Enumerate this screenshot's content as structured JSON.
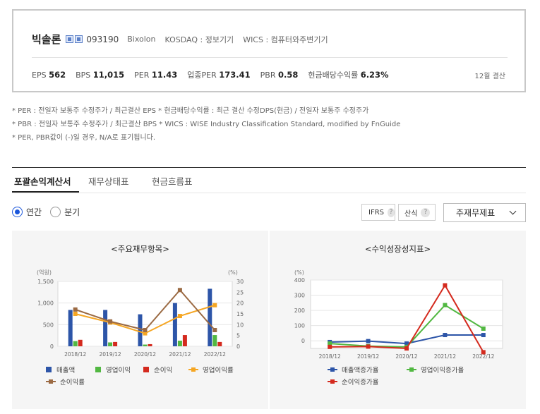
{
  "company": {
    "name": "빅솔론",
    "code": "093190",
    "eng_name": "Bixolon",
    "market": "KOSDAQ : 정보기기",
    "wics": "WICS : 컴퓨터와주변기기"
  },
  "indicators": [
    {
      "label": "EPS",
      "value": "562"
    },
    {
      "label": "BPS",
      "value": "11,015"
    },
    {
      "label": "PER",
      "value": "11.43"
    },
    {
      "label": "업종PER",
      "value": "173.41"
    },
    {
      "label": "PBR",
      "value": "0.58"
    },
    {
      "label": "현금배당수익률",
      "value": "6.23%"
    }
  ],
  "settlement": "12월 결산",
  "notes": [
    "* PER : 전일자 보통주 수정주가 / 최근결산 EPS * 현금배당수익률 : 최근 결산 수정DPS(현금) / 전일자 보통주 수정주가",
    "* PBR : 전일자 보통주 수정주가 / 최근결산 BPS * WICS : WISE Industry Classification Standard, modified by FnGuide",
    "* PER, PBR값이 (-)일 경우, N/A로 표기됩니다."
  ],
  "tabs": [
    "포괄손익계산서",
    "재무상태표",
    "현금흐름표"
  ],
  "period_options": [
    "연간",
    "분기"
  ],
  "controls": {
    "ifrs": "IFRS",
    "calc": "산식",
    "help": "?",
    "select": "주재무제표"
  },
  "colors": {
    "blue": "#2d55a8",
    "green": "#52b842",
    "red": "#d42a1e",
    "orange": "#f5a623",
    "brown": "#9b6a43",
    "accent": "#1a56db"
  },
  "chart_data": [
    {
      "type": "bar",
      "title": "<주요재무항목>",
      "categories": [
        "2018/12",
        "2019/12",
        "2020/12",
        "2021/12",
        "2022/12"
      ],
      "left_axis": {
        "unit": "(억원)",
        "ylim": [
          0,
          1500
        ],
        "ticks": [
          "0",
          "500",
          "1,000",
          "1,500"
        ]
      },
      "right_axis": {
        "unit": "(%)",
        "ylim": [
          0,
          30
        ],
        "ticks": [
          "0",
          "5",
          "10",
          "15",
          "20",
          "25",
          "30"
        ]
      },
      "series": [
        {
          "name": "매출액",
          "kind": "bar",
          "axis": "left",
          "color": "#2d55a8",
          "values": [
            840,
            840,
            740,
            1000,
            1330
          ]
        },
        {
          "name": "영업이익",
          "kind": "bar",
          "axis": "left",
          "color": "#52b842",
          "values": [
            120,
            90,
            40,
            130,
            260
          ]
        },
        {
          "name": "순이익",
          "kind": "bar",
          "axis": "left",
          "color": "#d42a1e",
          "values": [
            150,
            100,
            50,
            260,
            100
          ]
        },
        {
          "name": "영업이익률",
          "kind": "line",
          "axis": "right",
          "color": "#f5a623",
          "values": [
            15,
            11,
            6,
            14,
            19
          ]
        },
        {
          "name": "순이익률",
          "kind": "line",
          "axis": "right",
          "color": "#9b6a43",
          "values": [
            17,
            11.5,
            7.5,
            26,
            7.5
          ]
        }
      ],
      "grid": true
    },
    {
      "type": "line",
      "title": "<수익성장성지표>",
      "categories": [
        "2018/12",
        "2019/12",
        "2020/12",
        "2021/12",
        "2022/12"
      ],
      "y_axis": {
        "unit": "(%)",
        "ylim": [
          -50,
          400
        ],
        "ticks": [
          "0",
          "100",
          "200",
          "300",
          "400"
        ]
      },
      "series": [
        {
          "name": "매출액증가율",
          "color": "#2d55a8",
          "values": [
            -8,
            -2,
            -18,
            38,
            38
          ]
        },
        {
          "name": "영업이익증가율",
          "color": "#52b842",
          "values": [
            -18,
            -35,
            -40,
            235,
            80
          ]
        },
        {
          "name": "순이익증가율",
          "color": "#d42a1e",
          "values": [
            -40,
            -38,
            -50,
            365,
            -75
          ]
        }
      ],
      "grid": true
    }
  ]
}
